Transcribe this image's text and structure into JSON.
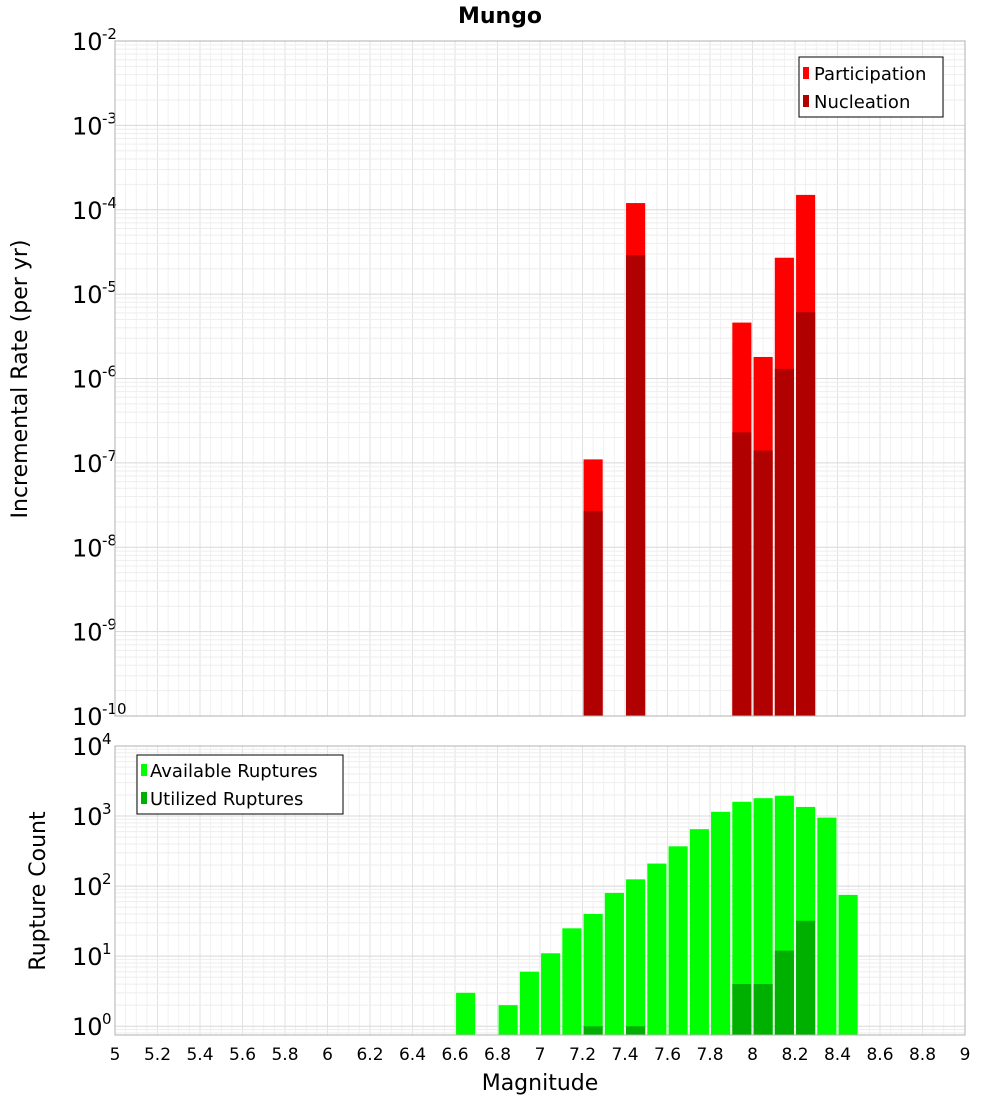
{
  "chart_data": [
    {
      "type": "bar",
      "title": "Mungo",
      "xlabel": "",
      "ylabel": "Incremental Rate (per yr)",
      "yscale": "log",
      "ylim": [
        1e-10,
        0.01
      ],
      "xlim": [
        5,
        9
      ],
      "y_tick_exponents": [
        "-10",
        "-9",
        "-8",
        "-7",
        "-6",
        "-5",
        "-4",
        "-3",
        "-2"
      ],
      "legend_position": "top-right",
      "grid": true,
      "series": [
        {
          "name": "Participation",
          "color": "#ff0000",
          "x": [
            7.25,
            7.45,
            7.95,
            8.05,
            8.15,
            8.25
          ],
          "values": [
            1.1e-07,
            0.00012,
            4.6e-06,
            1.8e-06,
            2.7e-05,
            0.00015
          ]
        },
        {
          "name": "Nucleation",
          "color": "#b00000",
          "x": [
            7.25,
            7.45,
            7.95,
            8.05,
            8.15,
            8.25
          ],
          "values": [
            2.7e-08,
            2.9e-05,
            2.3e-07,
            1.4e-07,
            1.3e-06,
            6.1e-06
          ]
        }
      ]
    },
    {
      "type": "bar",
      "title": "",
      "xlabel": "Magnitude",
      "ylabel": "Rupture Count",
      "yscale": "log",
      "ylim": [
        0.75,
        10000
      ],
      "xlim": [
        5,
        9
      ],
      "x_tick_labels": [
        "5",
        "5.2",
        "5.4",
        "5.6",
        "5.8",
        "6",
        "6.2",
        "6.4",
        "6.6",
        "6.8",
        "7",
        "7.2",
        "7.4",
        "7.6",
        "7.8",
        "8",
        "8.2",
        "8.4",
        "8.6",
        "8.8",
        "9"
      ],
      "y_tick_exponents": [
        "0",
        "1",
        "2",
        "3",
        "4"
      ],
      "legend_position": "top-left",
      "grid": true,
      "series": [
        {
          "name": "Available Ruptures",
          "color": "#00ff00",
          "x": [
            6.65,
            6.85,
            6.95,
            7.05,
            7.15,
            7.25,
            7.35,
            7.45,
            7.55,
            7.65,
            7.75,
            7.85,
            7.95,
            8.05,
            8.15,
            8.25,
            8.35,
            8.45
          ],
          "values": [
            3,
            2,
            6,
            11,
            25,
            40,
            80,
            125,
            210,
            370,
            650,
            1150,
            1600,
            1800,
            1950,
            1350,
            950,
            75
          ]
        },
        {
          "name": "Utilized Ruptures",
          "color": "#00b000",
          "x": [
            7.25,
            7.45,
            7.95,
            8.05,
            8.15,
            8.25
          ],
          "values": [
            1,
            1,
            4,
            4,
            12,
            32
          ]
        }
      ]
    }
  ]
}
